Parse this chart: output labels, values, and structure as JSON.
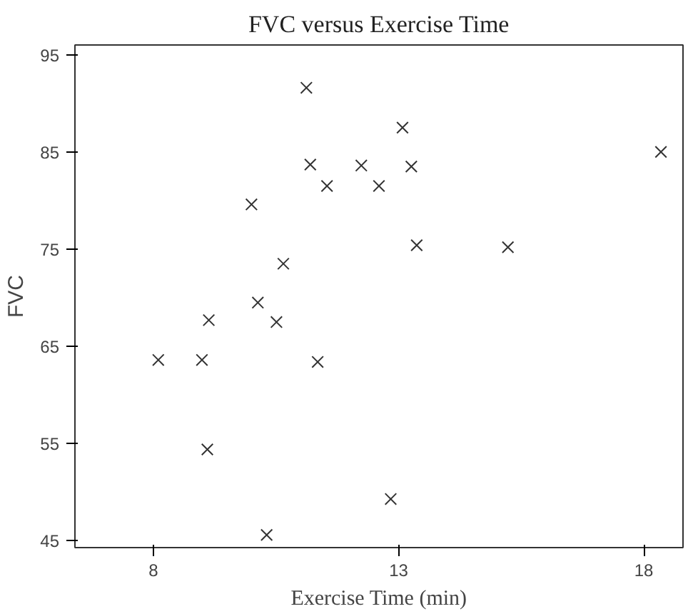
{
  "chart_data": {
    "type": "scatter",
    "title": "FVC versus Exercise Time",
    "xlabel": "Exercise Time (min)",
    "ylabel": "FVC",
    "x": [
      11.12,
      11.2,
      11.54,
      12.24,
      10.0,
      10.65,
      10.13,
      10.51,
      9.13,
      8.1,
      8.99,
      11.35,
      9.1,
      10.31,
      13.08,
      13.26,
      12.6,
      13.37,
      15.23,
      18.35,
      12.84
    ],
    "values": [
      91.6,
      83.7,
      81.5,
      83.6,
      79.6,
      73.5,
      69.5,
      67.5,
      67.7,
      63.6,
      63.6,
      63.4,
      54.4,
      45.6,
      87.5,
      83.5,
      81.5,
      75.4,
      75.2,
      85.0,
      49.3
    ],
    "color": "#333333",
    "marker": "cross",
    "grid": false,
    "xlim": [
      6.4,
      18.8
    ],
    "ylim": [
      44.3,
      96
    ],
    "xticks": [
      8,
      13,
      18
    ],
    "yticks": [
      45,
      55,
      65,
      75,
      85,
      95
    ]
  }
}
